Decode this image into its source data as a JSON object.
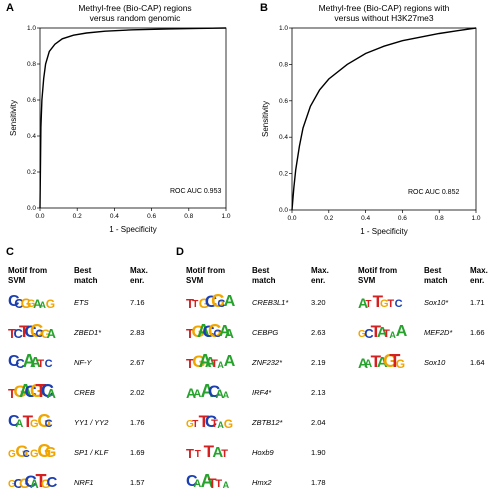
{
  "panel_a": {
    "letter": "A",
    "title_line1": "Methyl-free (Bio-CAP) regions",
    "title_line2": "versus random genomic",
    "auc_label": "ROC AUC 0.953"
  },
  "panel_b": {
    "letter": "B",
    "title_line1": "Methyl-free (Bio-CAP) regions with",
    "title_line2": "versus without H3K27me3",
    "auc_label": "ROC AUC 0.852"
  },
  "panel_c": {
    "letter": "C",
    "headers": {
      "motif_line1": "Motif from",
      "motif_line2": "SVM",
      "match_line1": "Best",
      "match_line2": "match",
      "enr_line1": "Max.",
      "enr_line2": "enr."
    },
    "rows": [
      {
        "gene": "ETS",
        "enr": "7.16",
        "logo": [
          {
            "c": "C",
            "col": "#1b3fb0"
          },
          {
            "c": "C",
            "col": "#1b3fb0"
          },
          {
            "c": "G",
            "col": "#f0a500"
          },
          {
            "c": "G",
            "col": "#f0a500"
          },
          {
            "c": "A",
            "col": "#27a22d"
          },
          {
            "c": "A",
            "col": "#27a22d"
          },
          {
            "c": "G",
            "col": "#f0a500"
          }
        ]
      },
      {
        "gene": "ZBED1*",
        "enr": "2.83",
        "logo": [
          {
            "c": "T",
            "col": "#d42020"
          },
          {
            "c": "C",
            "col": "#1b3fb0"
          },
          {
            "c": "T",
            "col": "#d42020"
          },
          {
            "c": "C",
            "col": "#1b3fb0"
          },
          {
            "c": "G",
            "col": "#f0a500"
          },
          {
            "c": "C",
            "col": "#1b3fb0"
          },
          {
            "c": "G",
            "col": "#f0a500"
          },
          {
            "c": "A",
            "col": "#27a22d"
          }
        ]
      },
      {
        "gene": "NF-Y",
        "enr": "2.67",
        "logo": [
          {
            "c": "C",
            "col": "#1b3fb0"
          },
          {
            "c": "C",
            "col": "#1b3fb0"
          },
          {
            "c": "A",
            "col": "#27a22d"
          },
          {
            "c": "A",
            "col": "#27a22d"
          },
          {
            "c": "T",
            "col": "#d42020"
          },
          {
            "c": "C",
            "col": "#1b3fb0"
          }
        ]
      },
      {
        "gene": "CREB",
        "enr": "2.02",
        "logo": [
          {
            "c": "T",
            "col": "#d42020"
          },
          {
            "c": "G",
            "col": "#f0a500"
          },
          {
            "c": "A",
            "col": "#27a22d"
          },
          {
            "c": "C",
            "col": "#1b3fb0"
          },
          {
            "c": "G",
            "col": "#f0a500"
          },
          {
            "c": "T",
            "col": "#d42020"
          },
          {
            "c": "C",
            "col": "#1b3fb0"
          },
          {
            "c": "A",
            "col": "#27a22d"
          }
        ]
      },
      {
        "gene": "YY1 / YY2",
        "enr": "1.76",
        "logo": [
          {
            "c": "C",
            "col": "#1b3fb0"
          },
          {
            "c": "A",
            "col": "#27a22d"
          },
          {
            "c": "T",
            "col": "#d42020"
          },
          {
            "c": "G",
            "col": "#f0a500"
          },
          {
            "c": "G",
            "col": "#f0a500"
          },
          {
            "c": "C",
            "col": "#1b3fb0"
          }
        ]
      },
      {
        "gene": "SP1 / KLF",
        "enr": "1.69",
        "logo": [
          {
            "c": "G",
            "col": "#f0a500"
          },
          {
            "c": "G",
            "col": "#f0a500"
          },
          {
            "c": "C",
            "col": "#1b3fb0"
          },
          {
            "c": "G",
            "col": "#f0a500"
          },
          {
            "c": "G",
            "col": "#f0a500"
          },
          {
            "c": "G",
            "col": "#f0a500"
          }
        ]
      },
      {
        "gene": "NRF1",
        "enr": "1.57",
        "logo": [
          {
            "c": "G",
            "col": "#f0a500"
          },
          {
            "c": "C",
            "col": "#1b3fb0"
          },
          {
            "c": "G",
            "col": "#f0a500"
          },
          {
            "c": "C",
            "col": "#1b3fb0"
          },
          {
            "c": "A",
            "col": "#27a22d"
          },
          {
            "c": "T",
            "col": "#d42020"
          },
          {
            "c": "G",
            "col": "#f0a500"
          },
          {
            "c": "C",
            "col": "#1b3fb0"
          }
        ]
      }
    ]
  },
  "panel_d": {
    "letter": "D",
    "headers": {
      "motif_line1": "Motif from",
      "motif_line2": "SVM",
      "match_line1": "Best",
      "match_line2": "match",
      "enr_line1": "Max.",
      "enr_line2": "enr."
    },
    "rows_left": [
      {
        "gene": "CREB3L1*",
        "enr": "3.20",
        "logo": [
          {
            "c": "T",
            "col": "#d42020"
          },
          {
            "c": "T",
            "col": "#d42020"
          },
          {
            "c": "G",
            "col": "#f0a500"
          },
          {
            "c": "C",
            "col": "#1b3fb0"
          },
          {
            "c": "G",
            "col": "#f0a500"
          },
          {
            "c": "C",
            "col": "#1b3fb0"
          },
          {
            "c": "A",
            "col": "#27a22d"
          }
        ]
      },
      {
        "gene": "CEBPG",
        "enr": "2.63",
        "logo": [
          {
            "c": "T",
            "col": "#d42020"
          },
          {
            "c": "G",
            "col": "#f0a500"
          },
          {
            "c": "A",
            "col": "#27a22d"
          },
          {
            "c": "C",
            "col": "#1b3fb0"
          },
          {
            "c": "G",
            "col": "#f0a500"
          },
          {
            "c": "C",
            "col": "#1b3fb0"
          },
          {
            "c": "A",
            "col": "#27a22d"
          },
          {
            "c": "A",
            "col": "#27a22d"
          }
        ]
      },
      {
        "gene": "ZNF232*",
        "enr": "2.19",
        "logo": [
          {
            "c": "T",
            "col": "#d42020"
          },
          {
            "c": "G",
            "col": "#f0a500"
          },
          {
            "c": "A",
            "col": "#27a22d"
          },
          {
            "c": "A",
            "col": "#27a22d"
          },
          {
            "c": "T",
            "col": "#d42020"
          },
          {
            "c": "A",
            "col": "#27a22d"
          },
          {
            "c": "A",
            "col": "#27a22d"
          }
        ]
      },
      {
        "gene": "IRF4*",
        "enr": "2.13",
        "logo": [
          {
            "c": "A",
            "col": "#27a22d"
          },
          {
            "c": "A",
            "col": "#27a22d"
          },
          {
            "c": "A",
            "col": "#27a22d"
          },
          {
            "c": "C",
            "col": "#1b3fb0"
          },
          {
            "c": "A",
            "col": "#27a22d"
          },
          {
            "c": "A",
            "col": "#27a22d"
          }
        ]
      },
      {
        "gene": "ZBTB12*",
        "enr": "2.04",
        "logo": [
          {
            "c": "G",
            "col": "#f0a500"
          },
          {
            "c": "T",
            "col": "#d42020"
          },
          {
            "c": "T",
            "col": "#d42020"
          },
          {
            "c": "C",
            "col": "#1b3fb0"
          },
          {
            "c": "T",
            "col": "#d42020"
          },
          {
            "c": "A",
            "col": "#27a22d"
          },
          {
            "c": "G",
            "col": "#f0a500"
          }
        ]
      },
      {
        "gene": "Hoxb9",
        "enr": "1.90",
        "logo": [
          {
            "c": "T",
            "col": "#d42020"
          },
          {
            "c": "T",
            "col": "#d42020"
          },
          {
            "c": "T",
            "col": "#d42020"
          },
          {
            "c": "A",
            "col": "#27a22d"
          },
          {
            "c": "T",
            "col": "#d42020"
          }
        ]
      },
      {
        "gene": "Hmx2",
        "enr": "1.78",
        "logo": [
          {
            "c": "C",
            "col": "#1b3fb0"
          },
          {
            "c": "A",
            "col": "#27a22d"
          },
          {
            "c": "A",
            "col": "#27a22d"
          },
          {
            "c": "T",
            "col": "#d42020"
          },
          {
            "c": "T",
            "col": "#d42020"
          },
          {
            "c": "A",
            "col": "#27a22d"
          }
        ]
      }
    ],
    "rows_right": [
      {
        "gene": "Sox10*",
        "enr": "1.71",
        "logo": [
          {
            "c": "A",
            "col": "#27a22d"
          },
          {
            "c": "T",
            "col": "#d42020"
          },
          {
            "c": "T",
            "col": "#d42020"
          },
          {
            "c": "G",
            "col": "#f0a500"
          },
          {
            "c": "T",
            "col": "#d42020"
          },
          {
            "c": "C",
            "col": "#1b3fb0"
          }
        ]
      },
      {
        "gene": "MEF2D*",
        "enr": "1.66",
        "logo": [
          {
            "c": "G",
            "col": "#f0a500"
          },
          {
            "c": "C",
            "col": "#1b3fb0"
          },
          {
            "c": "T",
            "col": "#d42020"
          },
          {
            "c": "A",
            "col": "#27a22d"
          },
          {
            "c": "T",
            "col": "#d42020"
          },
          {
            "c": "A",
            "col": "#27a22d"
          },
          {
            "c": "A",
            "col": "#27a22d"
          }
        ]
      },
      {
        "gene": "Sox10",
        "enr": "1.64",
        "logo": [
          {
            "c": "A",
            "col": "#27a22d"
          },
          {
            "c": "A",
            "col": "#27a22d"
          },
          {
            "c": "T",
            "col": "#d42020"
          },
          {
            "c": "A",
            "col": "#27a22d"
          },
          {
            "c": "G",
            "col": "#f0a500"
          },
          {
            "c": "T",
            "col": "#d42020"
          },
          {
            "c": "G",
            "col": "#f0a500"
          }
        ]
      }
    ]
  },
  "chart_data": [
    {
      "type": "line",
      "xlabel": "1 - Specificity",
      "ylabel": "Sensitivity",
      "xlim": [
        0,
        1
      ],
      "ylim": [
        0,
        1
      ],
      "xticks": [
        "0.0",
        "0.2",
        "0.4",
        "0.6",
        "0.8",
        "1.0"
      ],
      "yticks": [
        "0.0",
        "0.2",
        "0.4",
        "0.6",
        "0.8",
        "1.0"
      ],
      "x": [
        0,
        0.005,
        0.01,
        0.02,
        0.03,
        0.05,
        0.08,
        0.12,
        0.18,
        0.25,
        0.35,
        0.5,
        0.7,
        0.85,
        1.0
      ],
      "y": [
        0,
        0.45,
        0.6,
        0.72,
        0.8,
        0.87,
        0.91,
        0.94,
        0.96,
        0.972,
        0.982,
        0.99,
        0.995,
        0.998,
        1.0
      ]
    },
    {
      "type": "line",
      "xlabel": "1 - Specificity",
      "ylabel": "Sensitivity",
      "xlim": [
        0,
        1
      ],
      "ylim": [
        0,
        1
      ],
      "xticks": [
        "0.0",
        "0.2",
        "0.4",
        "0.6",
        "0.8",
        "1.0"
      ],
      "yticks": [
        "0.0",
        "0.2",
        "0.4",
        "0.6",
        "0.8",
        "1.0"
      ],
      "x": [
        0,
        0.01,
        0.02,
        0.04,
        0.06,
        0.1,
        0.15,
        0.2,
        0.3,
        0.4,
        0.5,
        0.6,
        0.7,
        0.8,
        0.9,
        1.0
      ],
      "y": [
        0,
        0.12,
        0.22,
        0.35,
        0.45,
        0.57,
        0.66,
        0.72,
        0.8,
        0.86,
        0.9,
        0.93,
        0.95,
        0.97,
        0.985,
        1.0
      ]
    }
  ]
}
